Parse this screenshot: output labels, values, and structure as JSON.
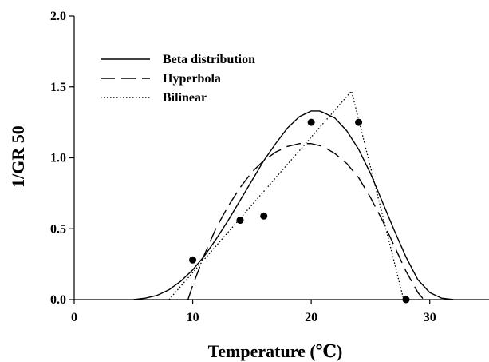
{
  "chart_data": {
    "type": "line",
    "xlabel": "Temperature (℃)",
    "ylabel": "1/GR 50",
    "xlim": [
      0,
      35
    ],
    "ylim": [
      0,
      2.0
    ],
    "x_ticks": [
      "0",
      "10",
      "20",
      "30"
    ],
    "y_ticks": [
      "0.0",
      "0.5",
      "1.0",
      "1.5",
      "2.0"
    ],
    "grid": false,
    "legend_position": "top-left",
    "series": [
      {
        "name": "Beta distribution",
        "style": "solid",
        "color": "#000000",
        "x": [
          5,
          6,
          7,
          8,
          9,
          10,
          11,
          12,
          13,
          14,
          15,
          16,
          17,
          18,
          19,
          20,
          20.7,
          21,
          22,
          23,
          24,
          25,
          26,
          27,
          28,
          29,
          30,
          31,
          32
        ],
        "y": [
          0.0,
          0.01,
          0.03,
          0.07,
          0.13,
          0.21,
          0.31,
          0.43,
          0.56,
          0.7,
          0.84,
          0.98,
          1.1,
          1.21,
          1.29,
          1.33,
          1.33,
          1.32,
          1.28,
          1.19,
          1.06,
          0.89,
          0.69,
          0.49,
          0.3,
          0.14,
          0.05,
          0.01,
          0.0
        ]
      },
      {
        "name": "Hyperbola",
        "style": "dashed",
        "color": "#000000",
        "x": [
          9.6,
          10,
          11,
          12,
          13,
          14,
          15,
          16,
          17,
          18,
          19,
          20,
          21,
          22,
          23,
          24,
          25,
          26,
          27,
          28,
          29,
          29.5
        ],
        "y": [
          0.0,
          0.1,
          0.32,
          0.51,
          0.66,
          0.79,
          0.9,
          0.98,
          1.04,
          1.08,
          1.1,
          1.1,
          1.08,
          1.03,
          0.96,
          0.86,
          0.72,
          0.56,
          0.38,
          0.2,
          0.05,
          0.0
        ]
      },
      {
        "name": "Bilinear",
        "style": "dotted",
        "color": "#000000",
        "x": [
          8,
          23.4,
          27.8
        ],
        "y": [
          0.0,
          1.47,
          0.0
        ]
      },
      {
        "name": "",
        "style": "points",
        "color": "#000000",
        "x": [
          10,
          14,
          16,
          20,
          24,
          28
        ],
        "y": [
          0.28,
          0.56,
          0.59,
          1.25,
          1.25,
          0.0
        ]
      }
    ]
  }
}
